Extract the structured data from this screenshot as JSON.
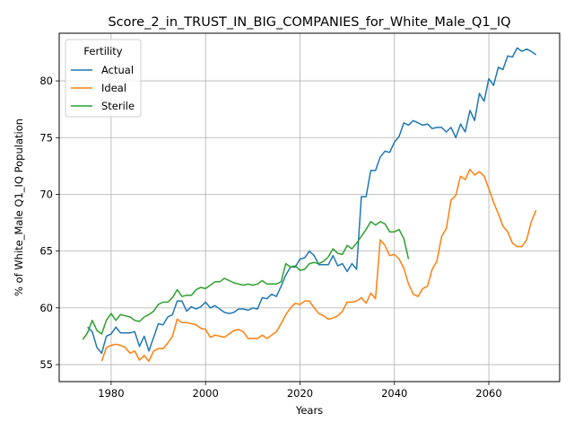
{
  "chart_data": {
    "type": "line",
    "title": "Score_2_in_TRUST_IN_BIG_COMPANIES_for_White_Male_Q1_IQ",
    "xlabel": "Years",
    "ylabel": "% of White_Male Q1_IQ Population",
    "xlim": [
      1969,
      2075
    ],
    "ylim": [
      53.5,
      84.2
    ],
    "xticks": [
      1980,
      2000,
      2020,
      2040,
      2060
    ],
    "yticks": [
      55,
      60,
      65,
      70,
      75,
      80
    ],
    "grid": true,
    "legend": {
      "title": "Fertility",
      "placement": "top-left"
    },
    "series": [
      {
        "name": "Actual",
        "color": "#1f77b4",
        "x": [
          1975,
          1976,
          1977,
          1978,
          1979,
          1980,
          1981,
          1982,
          1983,
          1984,
          1985,
          1986,
          1987,
          1988,
          1989,
          1990,
          1991,
          1992,
          1993,
          1994,
          1995,
          1996,
          1997,
          1998,
          1999,
          2000,
          2001,
          2002,
          2003,
          2004,
          2005,
          2006,
          2007,
          2008,
          2009,
          2010,
          2011,
          2012,
          2013,
          2014,
          2015,
          2016,
          2017,
          2018,
          2019,
          2020,
          2021,
          2022,
          2023,
          2024,
          2025,
          2026,
          2027,
          2028,
          2029,
          2030,
          2031,
          2032,
          2033,
          2034,
          2035,
          2036,
          2037,
          2038,
          2039,
          2040,
          2041,
          2042,
          2043,
          2044,
          2045,
          2046,
          2047,
          2048,
          2049,
          2050,
          2051,
          2052,
          2053,
          2054,
          2055,
          2056,
          2057,
          2058,
          2059,
          2060,
          2061,
          2062,
          2063,
          2064,
          2065,
          2066,
          2067,
          2068,
          2069,
          2070
        ],
        "y": [
          58.3,
          57.9,
          56.5,
          56.0,
          57.5,
          57.7,
          58.3,
          57.8,
          57.8,
          57.8,
          57.9,
          56.6,
          57.5,
          56.2,
          57.4,
          58.6,
          58.5,
          59.2,
          59.4,
          60.6,
          60.6,
          59.7,
          60.1,
          59.9,
          60.1,
          60.5,
          60.0,
          60.2,
          59.9,
          59.6,
          59.5,
          59.6,
          59.9,
          59.9,
          59.8,
          60.0,
          59.9,
          60.9,
          60.8,
          61.2,
          61.0,
          61.9,
          62.9,
          63.6,
          63.6,
          64.3,
          64.4,
          65.0,
          64.6,
          63.8,
          63.8,
          63.8,
          64.6,
          63.7,
          63.9,
          63.2,
          63.9,
          63.4,
          69.8,
          69.8,
          72.1,
          72.1,
          73.3,
          73.8,
          73.7,
          74.6,
          75.1,
          76.3,
          76.1,
          76.5,
          76.3,
          76.1,
          76.2,
          75.8,
          75.9,
          75.9,
          75.5,
          75.9,
          75.0,
          76.2,
          75.5,
          77.4,
          76.5,
          78.9,
          78.2,
          80.2,
          79.6,
          81.2,
          81.0,
          82.2,
          82.1,
          82.9,
          82.6,
          82.8,
          82.6,
          82.3
        ]
      },
      {
        "name": "Ideal",
        "color": "#ff7f0e",
        "x": [
          1978,
          1979,
          1980,
          1981,
          1982,
          1983,
          1984,
          1985,
          1986,
          1987,
          1988,
          1989,
          1990,
          1991,
          1992,
          1993,
          1994,
          1995,
          1996,
          1997,
          1998,
          1999,
          2000,
          2001,
          2002,
          2003,
          2004,
          2005,
          2006,
          2007,
          2008,
          2009,
          2010,
          2011,
          2012,
          2013,
          2014,
          2015,
          2016,
          2017,
          2018,
          2019,
          2020,
          2021,
          2022,
          2023,
          2024,
          2025,
          2026,
          2027,
          2028,
          2029,
          2030,
          2031,
          2032,
          2033,
          2034,
          2035,
          2036,
          2037,
          2038,
          2039,
          2040,
          2041,
          2042,
          2043,
          2044,
          2045,
          2046,
          2047,
          2048,
          2049,
          2050,
          2051,
          2052,
          2053,
          2054,
          2055,
          2056,
          2057,
          2058,
          2059,
          2060,
          2061,
          2062,
          2063,
          2064,
          2065,
          2066,
          2067,
          2068,
          2069,
          2070
        ],
        "y": [
          55.3,
          56.5,
          56.7,
          56.8,
          56.7,
          56.5,
          56.0,
          56.2,
          55.4,
          55.8,
          55.3,
          56.2,
          56.4,
          56.4,
          56.9,
          57.5,
          59.0,
          58.7,
          58.7,
          58.6,
          58.5,
          58.2,
          58.1,
          57.4,
          57.6,
          57.5,
          57.4,
          57.7,
          58.0,
          58.1,
          57.9,
          57.3,
          57.3,
          57.3,
          57.6,
          57.3,
          57.6,
          57.9,
          58.6,
          59.4,
          60.0,
          60.4,
          60.3,
          60.6,
          60.6,
          60.0,
          59.5,
          59.3,
          59.0,
          59.1,
          59.3,
          59.7,
          60.5,
          60.5,
          60.6,
          60.9,
          60.4,
          61.3,
          60.8,
          66.0,
          65.5,
          64.6,
          64.7,
          64.3,
          63.5,
          62.1,
          61.2,
          61.0,
          61.7,
          61.9,
          63.4,
          64.1,
          66.3,
          67.0,
          69.5,
          69.9,
          71.6,
          71.3,
          72.2,
          71.7,
          72.0,
          71.6,
          70.5,
          69.3,
          68.3,
          67.2,
          66.7,
          65.7,
          65.4,
          65.4,
          66.0,
          67.6,
          68.6
        ]
      },
      {
        "name": "Sterile",
        "color": "#2ca02c",
        "x": [
          1974,
          1975,
          1976,
          1977,
          1978,
          1979,
          1980,
          1981,
          1982,
          1983,
          1984,
          1985,
          1986,
          1987,
          1988,
          1989,
          1990,
          1991,
          1992,
          1993,
          1994,
          1995,
          1996,
          1997,
          1998,
          1999,
          2000,
          2001,
          2002,
          2003,
          2004,
          2005,
          2006,
          2007,
          2008,
          2009,
          2010,
          2011,
          2012,
          2013,
          2014,
          2015,
          2016,
          2017,
          2018,
          2019,
          2020,
          2021,
          2022,
          2023,
          2024,
          2025,
          2026,
          2027,
          2028,
          2029,
          2030,
          2031,
          2032,
          2033,
          2034,
          2035,
          2036,
          2037,
          2038,
          2039,
          2040,
          2041,
          2042,
          2043
        ],
        "y": [
          57.2,
          57.8,
          58.9,
          58.0,
          57.7,
          58.9,
          59.5,
          58.9,
          59.4,
          59.3,
          59.2,
          58.9,
          58.8,
          59.2,
          59.4,
          59.7,
          60.3,
          60.5,
          60.5,
          60.9,
          61.6,
          61.0,
          61.1,
          61.1,
          61.6,
          61.8,
          61.7,
          62.0,
          62.3,
          62.3,
          62.6,
          62.4,
          62.2,
          62.1,
          62.0,
          62.1,
          62.0,
          62.1,
          62.4,
          62.1,
          62.1,
          62.1,
          62.3,
          63.9,
          63.6,
          63.7,
          63.3,
          63.4,
          63.9,
          64.0,
          63.9,
          64.1,
          64.5,
          65.2,
          64.8,
          64.7,
          65.5,
          65.2,
          65.7,
          66.3,
          66.9,
          67.6,
          67.3,
          67.6,
          67.4,
          66.7,
          66.7,
          66.9,
          66.1,
          64.3
        ]
      }
    ]
  }
}
